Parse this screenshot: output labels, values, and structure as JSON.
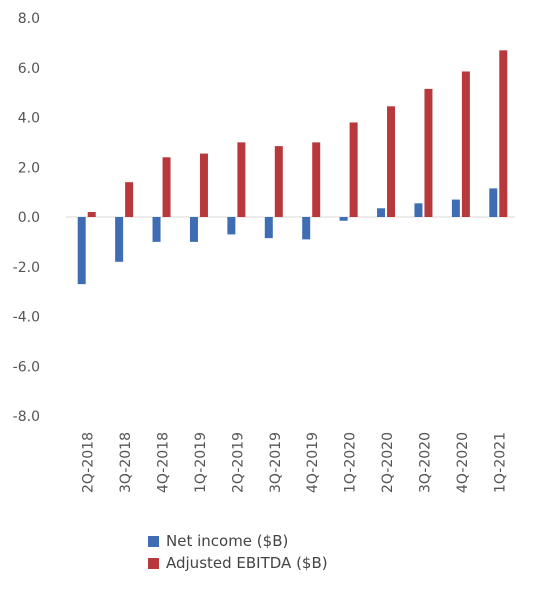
{
  "chart_data": {
    "type": "bar",
    "categories": [
      "2Q-2018",
      "3Q-2018",
      "4Q-2018",
      "1Q-2019",
      "2Q-2019",
      "3Q-2019",
      "4Q-2019",
      "1Q-2020",
      "2Q-2020",
      "3Q-2020",
      "4Q-2020",
      "1Q-2021"
    ],
    "series": [
      {
        "name": "Net income ($B)",
        "color": "#3e6db3",
        "values": [
          -2.7,
          -1.8,
          -1.0,
          -1.0,
          -0.7,
          -0.85,
          -0.9,
          -0.15,
          0.35,
          0.55,
          0.7,
          1.15
        ]
      },
      {
        "name": "Adjusted EBITDA ($B)",
        "color": "#b8393c",
        "values": [
          0.2,
          1.4,
          2.4,
          2.55,
          3.0,
          2.85,
          3.0,
          3.8,
          4.45,
          5.15,
          5.85,
          6.7
        ]
      }
    ],
    "ylim": [
      -8,
      8
    ],
    "yticks": [
      "8.0",
      "6.0",
      "4.0",
      "2.0",
      "0.0",
      "-2.0",
      "-4.0",
      "-6.0",
      "-8.0"
    ],
    "ytick_values": [
      8,
      6,
      4,
      2,
      0,
      -2,
      -4,
      -6,
      -8
    ],
    "grid": false,
    "legend_position": "bottom"
  }
}
